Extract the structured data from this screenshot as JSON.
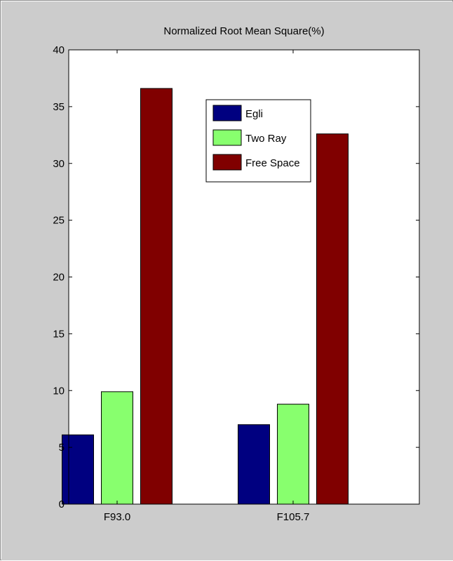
{
  "chart_data": {
    "type": "bar",
    "title": "Normalized Root Mean Square(%)",
    "xlabel": "",
    "ylabel": "",
    "categories": [
      "F93.0",
      "F105.7"
    ],
    "series": [
      {
        "name": "Egli",
        "values": [
          6.1,
          7.0
        ],
        "color": "#000080"
      },
      {
        "name": "Two Ray",
        "values": [
          9.9,
          8.8
        ],
        "color": "#88ff6e"
      },
      {
        "name": "Free Space",
        "values": [
          36.6,
          32.6
        ],
        "color": "#800000"
      }
    ],
    "ylim": [
      0,
      40
    ],
    "yticks": [
      0,
      5,
      10,
      15,
      20,
      25,
      30,
      35,
      40
    ],
    "grid": false,
    "legend_position": "top-right"
  },
  "colors": {
    "figure_background": "#cccccc",
    "axes_background": "#ffffff",
    "axis_color": "#000000"
  }
}
